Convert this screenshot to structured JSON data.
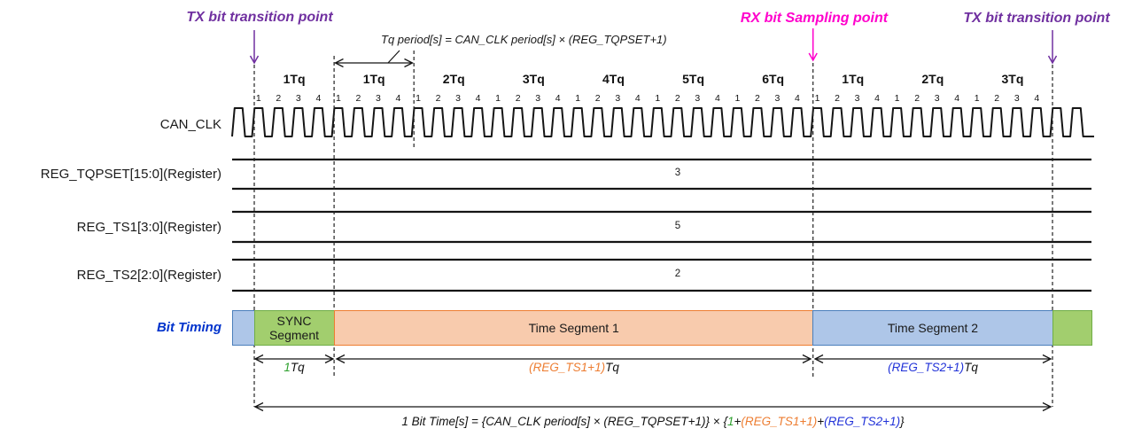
{
  "colors": {
    "purple": "#7030A0",
    "magenta": "#FF00CC",
    "bit_timing_blue": "#0033CC",
    "green_text": "#2DA02D",
    "orange_text": "#ED7D31",
    "blue_text": "#2031D8",
    "line_black": "#151515",
    "seg_blue_fill": "#AEC6E8",
    "seg_blue_border": "#4A7EBB",
    "seg_green_fill": "#A2CE6E",
    "seg_green_border": "#70AD47",
    "seg_orange_fill": "#F8CBAD",
    "seg_orange_border": "#ED7D31"
  },
  "annotations": {
    "tx_left": "TX bit transition point",
    "rx": "RX bit Sampling point",
    "tx_right": "TX bit transition point",
    "tq_period_formula": "Tq period[s] = CAN_CLK period[s] × (REG_TQPSET+1)"
  },
  "tq_scale": {
    "labels": [
      "1Tq",
      "1Tq",
      "2Tq",
      "3Tq",
      "4Tq",
      "5Tq",
      "6Tq",
      "1Tq",
      "2Tq",
      "3Tq"
    ]
  },
  "clock": {
    "label": "CAN_CLK",
    "numbering_pattern": [
      "1",
      "2",
      "3",
      "4"
    ],
    "pattern_repeats": 10
  },
  "registers": [
    {
      "label": "REG_TQPSET[15:0](Register)",
      "value": "3"
    },
    {
      "label": "REG_TS1[3:0](Register)",
      "value": "5"
    },
    {
      "label": "REG_TS2[2:0](Register)",
      "value": "2"
    }
  ],
  "bit_timing": {
    "label": "Bit Timing",
    "segments": [
      {
        "name": "SYNC Segment"
      },
      {
        "name": "Time Segment 1"
      },
      {
        "name": "Time Segment 2"
      }
    ],
    "durations": {
      "sync": [
        {
          "text": "1",
          "color": "#2DA02D"
        },
        {
          "text": "Tq",
          "color": "#111111"
        }
      ],
      "ts1": [
        {
          "text": "(REG_TS1+1)",
          "color": "#ED7D31"
        },
        {
          "text": "Tq",
          "color": "#111111"
        }
      ],
      "ts2": [
        {
          "text": "(REG_TS2+1)",
          "color": "#2031D8"
        },
        {
          "text": "Tq",
          "color": "#111111"
        }
      ]
    }
  },
  "bit_time_formula": [
    {
      "text": "1 Bit Time[s] = {CAN_CLK period[s] × (REG_TQPSET+1)} × {",
      "color": "#111111"
    },
    {
      "text": "1",
      "color": "#2DA02D"
    },
    {
      "text": "+",
      "color": "#111111"
    },
    {
      "text": "(REG_TS1+1)",
      "color": "#ED7D31"
    },
    {
      "text": "+",
      "color": "#111111"
    },
    {
      "text": "(REG_TS2+1)",
      "color": "#2031D8"
    },
    {
      "text": "}",
      "color": "#111111"
    }
  ]
}
